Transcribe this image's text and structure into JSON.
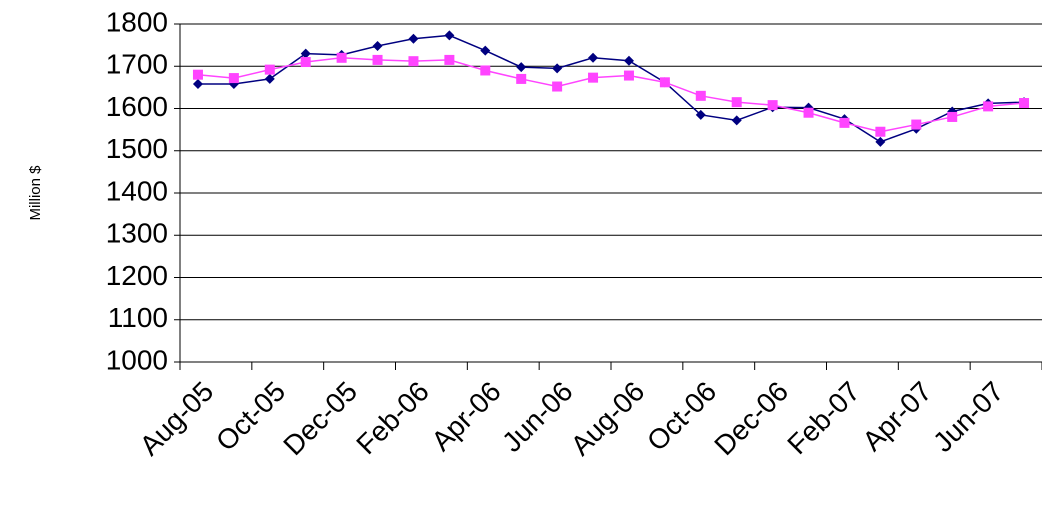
{
  "chart_data": {
    "type": "line",
    "y_label": "Million $",
    "categories": [
      "Aug-05",
      null,
      "Oct-05",
      null,
      "Dec-05",
      null,
      "Feb-06",
      null,
      "Apr-06",
      null,
      "Jun-06",
      null,
      "Aug-06",
      null,
      "Oct-06",
      null,
      "Dec-06",
      null,
      "Feb-07",
      null,
      "Apr-07",
      null,
      "Jun-07",
      null
    ],
    "series": [
      {
        "color": "#000080",
        "marker": "diamond",
        "values": [
          1658,
          1658,
          1670,
          1730,
          1727,
          1748,
          1765,
          1773,
          1737,
          1698,
          1695,
          1720,
          1713,
          1662,
          1585,
          1572,
          1603,
          1602,
          1575,
          1521,
          1552,
          1593,
          1612,
          1615
        ]
      },
      {
        "color": "#ff44ff",
        "marker": "square",
        "values": [
          1680,
          1672,
          1692,
          1710,
          1720,
          1715,
          1712,
          1715,
          1690,
          1670,
          1652,
          1673,
          1678,
          1662,
          1630,
          1615,
          1608,
          1590,
          1566,
          1545,
          1562,
          1580,
          1605,
          1613
        ]
      }
    ],
    "ylim": [
      1000,
      1800
    ],
    "yticks": [
      1000,
      1100,
      1200,
      1300,
      1400,
      1500,
      1600,
      1700,
      1800
    ],
    "grid": true
  }
}
